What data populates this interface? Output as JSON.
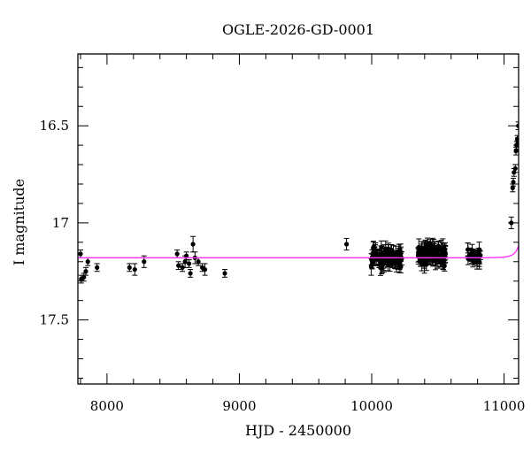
{
  "chart_data": {
    "type": "scatter",
    "title": "OGLE-2026-GD-0001",
    "xlabel": "HJD - 2450000",
    "ylabel": "I magnitude",
    "xlim": [
      7780,
      11110
    ],
    "ylim": [
      17.83,
      16.13
    ],
    "y_inverted": true,
    "grid": false,
    "x_ticks": [
      8000,
      9000,
      10000,
      11000
    ],
    "x_tick_labels": [
      "8000",
      "9000",
      "10000",
      "11000"
    ],
    "y_ticks": [
      16.5,
      17,
      17.5
    ],
    "y_tick_labels": [
      "16.5",
      "17",
      "17.5"
    ],
    "model_color": "#ff33ff",
    "point_color": "#000000",
    "model": {
      "baseline": 17.18,
      "t_peak": 11160,
      "amplitude": 0.16,
      "tE": 60
    },
    "sparse_points": [
      [
        7800,
        17.16,
        0.02
      ],
      [
        7805,
        17.29,
        0.02
      ],
      [
        7825,
        17.28,
        0.02
      ],
      [
        7840,
        17.25,
        0.02
      ],
      [
        7855,
        17.2,
        0.02
      ],
      [
        7925,
        17.23,
        0.02
      ],
      [
        8170,
        17.23,
        0.02
      ],
      [
        8210,
        17.24,
        0.03
      ],
      [
        8280,
        17.2,
        0.03
      ],
      [
        8530,
        17.16,
        0.02
      ],
      [
        8540,
        17.22,
        0.02
      ],
      [
        8570,
        17.23,
        0.02
      ],
      [
        8590,
        17.2,
        0.03
      ],
      [
        8600,
        17.17,
        0.02
      ],
      [
        8620,
        17.21,
        0.02
      ],
      [
        8630,
        17.26,
        0.02
      ],
      [
        8650,
        17.11,
        0.04
      ],
      [
        8665,
        17.18,
        0.03
      ],
      [
        8690,
        17.2,
        0.02
      ],
      [
        8720,
        17.23,
        0.02
      ],
      [
        8740,
        17.24,
        0.03
      ],
      [
        8890,
        17.26,
        0.02
      ],
      [
        9810,
        17.11,
        0.03
      ]
    ],
    "dense_segments": [
      {
        "x_start": 9995,
        "x_end": 10230,
        "count": 90,
        "mean_mag": 17.18,
        "scatter": 0.05,
        "error": 0.035
      },
      {
        "x_start": 10350,
        "x_end": 10560,
        "count": 100,
        "mean_mag": 17.16,
        "scatter": 0.05,
        "error": 0.035
      },
      {
        "x_start": 10720,
        "x_end": 10830,
        "count": 30,
        "mean_mag": 17.17,
        "scatter": 0.04,
        "error": 0.03
      }
    ],
    "rise_points": [
      [
        11055,
        17.0,
        0.03
      ],
      [
        11065,
        16.82,
        0.02
      ],
      [
        11070,
        16.79,
        0.02
      ],
      [
        11075,
        16.74,
        0.02
      ],
      [
        11085,
        16.72,
        0.02
      ],
      [
        11090,
        16.63,
        0.02
      ],
      [
        11095,
        16.6,
        0.02
      ],
      [
        11100,
        16.57,
        0.02
      ],
      [
        11105,
        16.58,
        0.02
      ],
      [
        11108,
        16.5,
        0.02
      ]
    ]
  }
}
